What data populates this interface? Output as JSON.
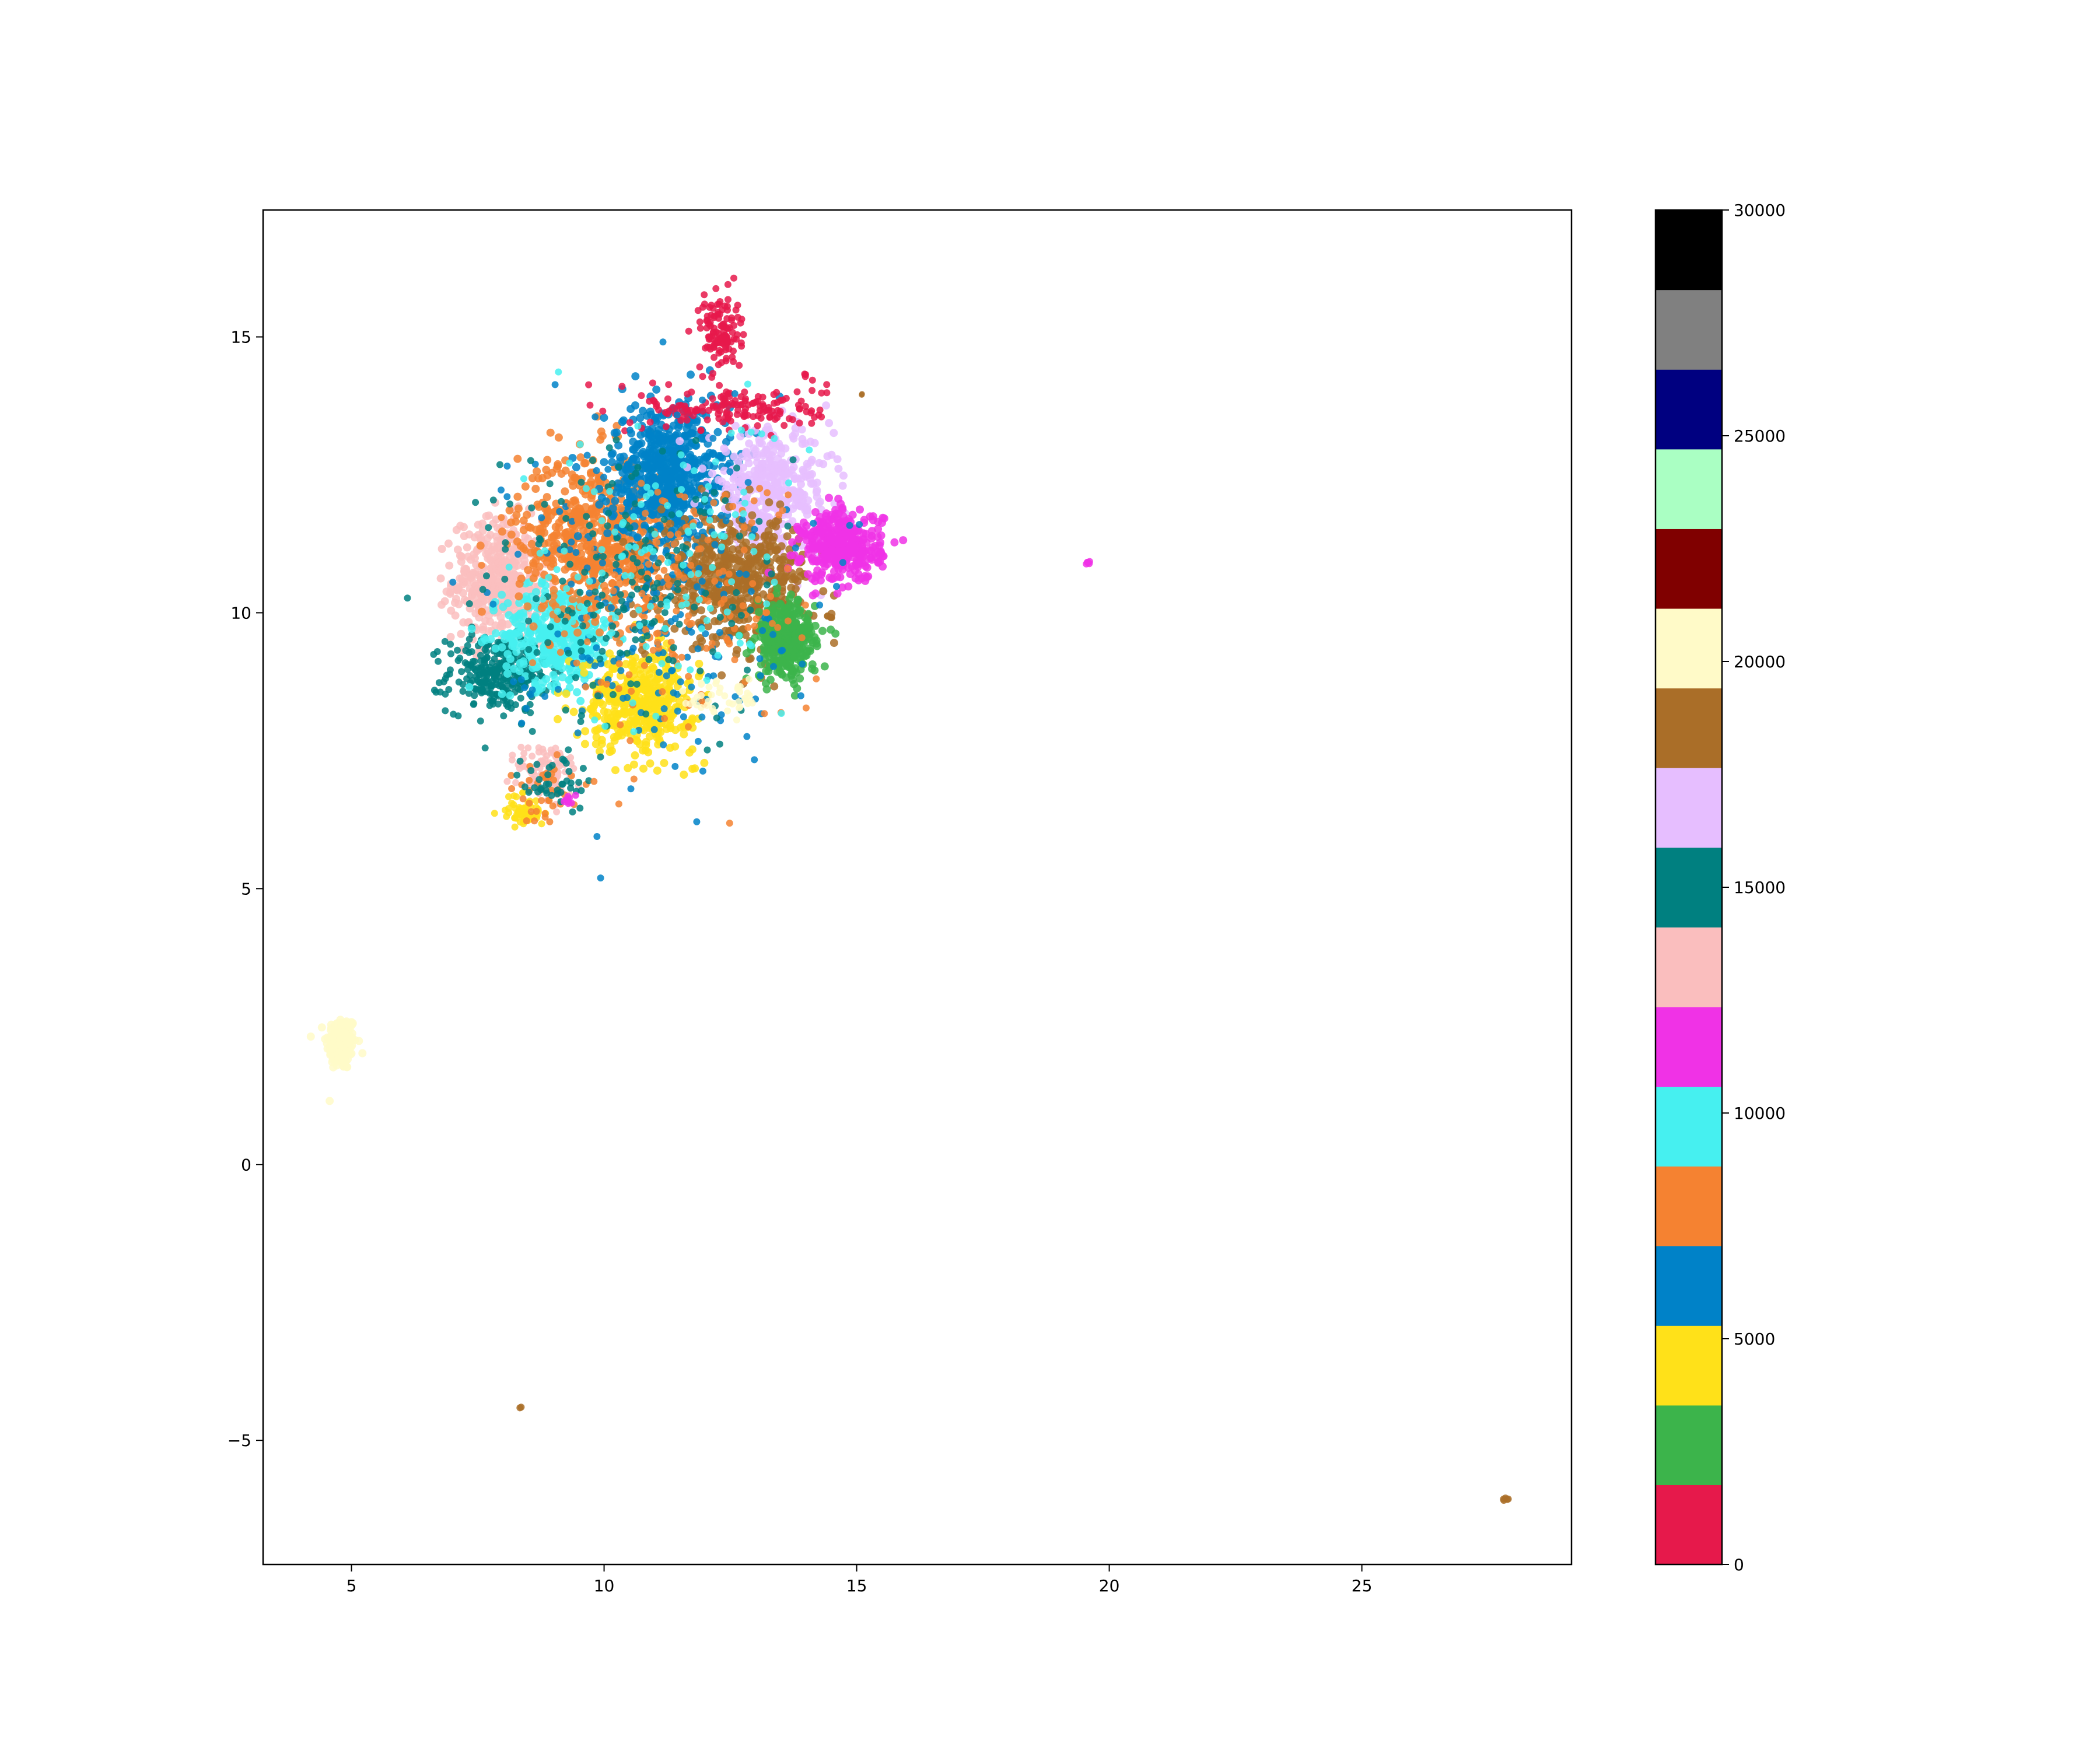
{
  "chart_data": {
    "type": "scatter",
    "title": "",
    "xlabel": "",
    "ylabel": "",
    "xlim": [
      3.25,
      29.15
    ],
    "ylim": [
      -7.25,
      17.3
    ],
    "x_ticks": [
      5,
      10,
      15,
      20,
      25
    ],
    "y_ticks": [
      -5,
      0,
      5,
      10,
      15
    ],
    "x_tick_labels": [
      "5",
      "10",
      "15",
      "20",
      "25"
    ],
    "y_tick_labels": [
      "−5",
      "0",
      "5",
      "10",
      "15"
    ],
    "grid": false,
    "legend": "none",
    "colorbar": {
      "range": [
        0,
        30000
      ],
      "ticks": [
        0,
        5000,
        10000,
        15000,
        20000,
        25000,
        30000
      ],
      "tick_labels": [
        "0",
        "5000",
        "10000",
        "15000",
        "20000",
        "25000",
        "30000"
      ],
      "colors": [
        "#e6194b",
        "#3cb44b",
        "#ffe119",
        "#0082c8",
        "#f58231",
        "#46f0f0",
        "#f032e6",
        "#fabebe",
        "#008080",
        "#e6beff",
        "#aa6e28",
        "#fffac8",
        "#800000",
        "#aaffc3",
        "#000080",
        "#808080",
        "#000000"
      ]
    },
    "clusters": [
      {
        "color": "#fffac8",
        "cx": 4.8,
        "cy": 2.2,
        "sx": 0.15,
        "sy": 0.25,
        "n": 180,
        "r": 7
      },
      {
        "color": "#fabebe",
        "cx": 7.9,
        "cy": 10.6,
        "sx": 0.45,
        "sy": 0.55,
        "n": 420,
        "r": 7
      },
      {
        "color": "#008080",
        "cx": 7.9,
        "cy": 8.9,
        "sx": 0.5,
        "sy": 0.35,
        "n": 300,
        "r": 6
      },
      {
        "color": "#46f0f0",
        "cx": 9.1,
        "cy": 9.6,
        "sx": 0.55,
        "sy": 0.45,
        "n": 420,
        "r": 7
      },
      {
        "color": "#f58231",
        "cx": 9.8,
        "cy": 11.4,
        "sx": 0.75,
        "sy": 0.75,
        "n": 600,
        "r": 7
      },
      {
        "color": "#0082c8",
        "cx": 11.3,
        "cy": 12.5,
        "sx": 0.6,
        "sy": 0.65,
        "n": 620,
        "r": 7
      },
      {
        "color": "#e6beff",
        "cx": 13.3,
        "cy": 12.2,
        "sx": 0.6,
        "sy": 0.55,
        "n": 420,
        "r": 7
      },
      {
        "color": "#aa6e28",
        "cx": 12.6,
        "cy": 10.6,
        "sx": 0.75,
        "sy": 0.55,
        "n": 520,
        "r": 7
      },
      {
        "color": "#f032e6",
        "cx": 14.7,
        "cy": 11.2,
        "sx": 0.4,
        "sy": 0.32,
        "n": 380,
        "r": 7
      },
      {
        "color": "#3cb44b",
        "cx": 13.6,
        "cy": 9.5,
        "sx": 0.3,
        "sy": 0.35,
        "n": 340,
        "r": 7
      },
      {
        "color": "#ffe119",
        "cx": 10.7,
        "cy": 8.4,
        "sx": 0.55,
        "sy": 0.45,
        "n": 420,
        "r": 7
      },
      {
        "color": "#e6194b",
        "cx": 12.3,
        "cy": 15.1,
        "sx": 0.2,
        "sy": 0.35,
        "n": 120,
        "r": 6
      },
      {
        "color": "#e6194b",
        "cx": 12.6,
        "cy": 13.7,
        "sx": 0.9,
        "sy": 0.2,
        "n": 160,
        "r": 6
      },
      {
        "color": "#fabebe",
        "cx": 8.9,
        "cy": 7.1,
        "sx": 0.3,
        "sy": 0.3,
        "n": 100,
        "r": 6
      },
      {
        "color": "#ffe119",
        "cx": 8.4,
        "cy": 6.4,
        "sx": 0.2,
        "sy": 0.15,
        "n": 60,
        "r": 6
      },
      {
        "color": "#f58231",
        "cx": 8.9,
        "cy": 6.8,
        "sx": 0.3,
        "sy": 0.3,
        "n": 40,
        "r": 6
      },
      {
        "color": "#008080",
        "cx": 9.0,
        "cy": 6.9,
        "sx": 0.3,
        "sy": 0.3,
        "n": 40,
        "r": 6
      },
      {
        "color": "#f032e6",
        "cx": 9.3,
        "cy": 6.6,
        "sx": 0.05,
        "sy": 0.05,
        "n": 10,
        "r": 6
      },
      {
        "color": "#0082c8",
        "cx": 10.9,
        "cy": 10.5,
        "sx": 1.4,
        "sy": 1.5,
        "n": 250,
        "r": 6
      },
      {
        "color": "#f58231",
        "cx": 11.2,
        "cy": 10.3,
        "sx": 1.3,
        "sy": 1.2,
        "n": 200,
        "r": 6
      },
      {
        "color": "#008080",
        "cx": 10.5,
        "cy": 10.5,
        "sx": 1.5,
        "sy": 1.3,
        "n": 180,
        "r": 6
      },
      {
        "color": "#46f0f0",
        "cx": 11.0,
        "cy": 10.8,
        "sx": 1.3,
        "sy": 1.4,
        "n": 120,
        "r": 6
      },
      {
        "color": "#fffac8",
        "cx": 12.4,
        "cy": 8.5,
        "sx": 0.4,
        "sy": 0.2,
        "n": 40,
        "r": 6
      },
      {
        "color": "#f032e6",
        "cx": 19.6,
        "cy": 10.9,
        "sx": 0.03,
        "sy": 0.02,
        "n": 6,
        "r": 6
      },
      {
        "color": "#aa6e28",
        "cx": 8.35,
        "cy": -4.4,
        "sx": 0.01,
        "sy": 0.01,
        "n": 2,
        "r": 6
      },
      {
        "color": "#aa6e28",
        "cx": 27.85,
        "cy": -6.05,
        "sx": 0.03,
        "sy": 0.03,
        "n": 5,
        "r": 6
      },
      {
        "color": "#aa6e28",
        "cx": 14.5,
        "cy": 9.95,
        "sx": 0.05,
        "sy": 0.04,
        "n": 6,
        "r": 6
      },
      {
        "color": "#e6194b",
        "cx": 14.0,
        "cy": 14.3,
        "sx": 0.02,
        "sy": 0.02,
        "n": 3,
        "r": 6
      },
      {
        "color": "#aa6e28",
        "cx": 15.1,
        "cy": 13.95,
        "sx": 0.01,
        "sy": 0.01,
        "n": 2,
        "r": 5
      }
    ]
  }
}
